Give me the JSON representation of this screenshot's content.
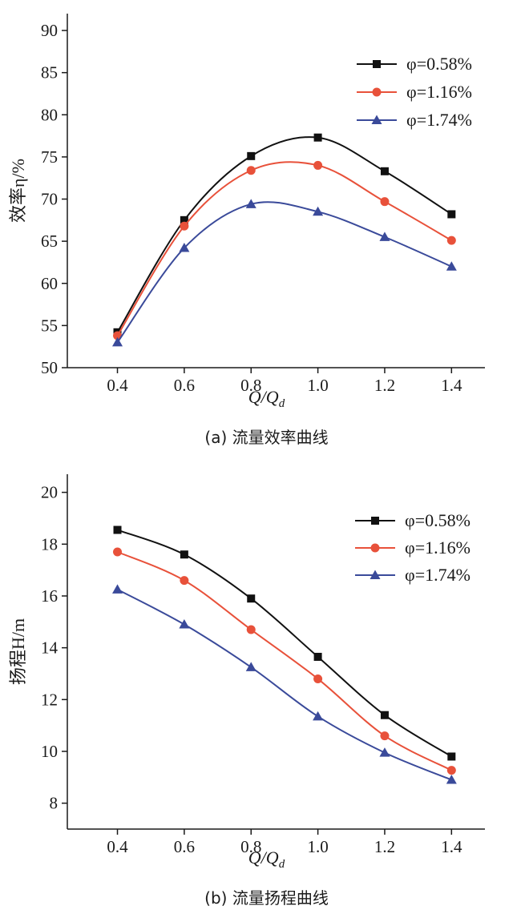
{
  "chart_data": [
    {
      "type": "line",
      "caption": "(a) 流量效率曲线",
      "xlabel": "Q/Qd",
      "ylabel": "效率η/%",
      "x": [
        0.4,
        0.6,
        0.8,
        1.0,
        1.2,
        1.4
      ],
      "x_ticks": [
        "0.4",
        "0.6",
        "0.8",
        "1.0",
        "1.2",
        "1.4"
      ],
      "xlim": [
        0.25,
        1.5
      ],
      "ylim": [
        50,
        92
      ],
      "y_ticks": [
        50,
        55,
        60,
        65,
        70,
        75,
        80,
        85,
        90
      ],
      "legend_position": "top-right",
      "series": [
        {
          "name": "φ=0.58%",
          "marker": "square",
          "color": "#111111",
          "values": [
            54.2,
            67.5,
            75.1,
            77.3,
            73.3,
            68.2
          ]
        },
        {
          "name": "φ=1.16%",
          "marker": "circle",
          "color": "#e8513a",
          "values": [
            53.8,
            66.8,
            73.4,
            74.0,
            69.7,
            65.1
          ]
        },
        {
          "name": "φ=1.74%",
          "marker": "triangle",
          "color": "#3a4a9a",
          "values": [
            53.0,
            64.2,
            69.4,
            68.5,
            65.5,
            62.0
          ]
        }
      ]
    },
    {
      "type": "line",
      "caption": "(b) 流量扬程曲线",
      "xlabel": "Q/Qd",
      "ylabel": "扬程H/m",
      "x": [
        0.4,
        0.6,
        0.8,
        1.0,
        1.2,
        1.4
      ],
      "x_ticks": [
        "0.4",
        "0.6",
        "0.8",
        "1.0",
        "1.2",
        "1.4"
      ],
      "xlim": [
        0.25,
        1.5
      ],
      "ylim": [
        7,
        20.7
      ],
      "y_ticks": [
        8,
        10,
        12,
        14,
        16,
        18,
        20
      ],
      "legend_position": "top-right",
      "series": [
        {
          "name": "φ=0.58%",
          "marker": "square",
          "color": "#111111",
          "values": [
            18.55,
            17.6,
            15.9,
            13.65,
            11.4,
            9.8
          ]
        },
        {
          "name": "φ=1.16%",
          "marker": "circle",
          "color": "#e8513a",
          "values": [
            17.7,
            16.6,
            14.7,
            12.8,
            10.6,
            9.27
          ]
        },
        {
          "name": "φ=1.74%",
          "marker": "triangle",
          "color": "#3a4a9a",
          "values": [
            16.25,
            14.9,
            13.25,
            11.35,
            9.95,
            8.9
          ]
        }
      ]
    }
  ]
}
